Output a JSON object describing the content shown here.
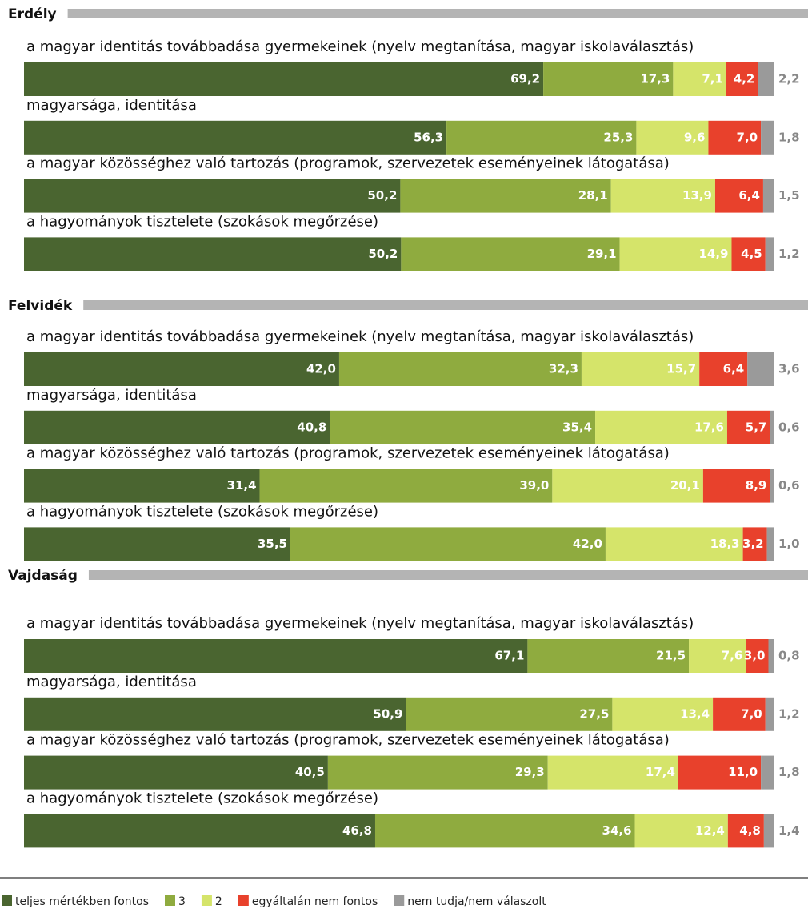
{
  "chart_data": {
    "type": "stacked-bar",
    "series": [
      {
        "name": "teljes mértékben fontos",
        "color": "#4a6530"
      },
      {
        "name": "3",
        "color": "#8fab3f"
      },
      {
        "name": "2",
        "color": "#d5e46a"
      },
      {
        "name": "egyáltalán nem fontos",
        "color": "#e8412c"
      },
      {
        "name": "nem tudja/nem válaszolt",
        "color": "#9a9a9a"
      }
    ],
    "groups": [
      {
        "title": "Erdély",
        "rows": [
          {
            "label": "a magyar identitás továbbadása gyermekeinek (nyelv megtanítása, magyar iskolaválasztás)",
            "values": [
              69.2,
              17.3,
              7.1,
              4.2,
              2.2
            ],
            "value_labels": [
              "69,2",
              "17,3",
              "7,1",
              "4,2",
              "2,2"
            ]
          },
          {
            "label": "magyarsága, identitása",
            "values": [
              56.3,
              25.3,
              9.6,
              7.0,
              1.8
            ],
            "value_labels": [
              "56,3",
              "25,3",
              "9,6",
              "7,0",
              "1,8"
            ]
          },
          {
            "label": "a magyar közösséghez való tartozás (programok, szervezetek eseményeinek látogatása)",
            "values": [
              50.2,
              28.1,
              13.9,
              6.4,
              1.5
            ],
            "value_labels": [
              "50,2",
              "28,1",
              "13,9",
              "6,4",
              "1,5"
            ]
          },
          {
            "label": "a hagyományok tisztelete (szokások megőrzése)",
            "values": [
              50.2,
              29.1,
              14.9,
              4.5,
              1.2
            ],
            "value_labels": [
              "50,2",
              "29,1",
              "14,9",
              "4,5",
              "1,2"
            ]
          }
        ]
      },
      {
        "title": "Felvidék",
        "rows": [
          {
            "label": "a magyar identitás továbbadása gyermekeinek (nyelv megtanítása, magyar iskolaválasztás)",
            "values": [
              42.0,
              32.3,
              15.7,
              6.4,
              3.6
            ],
            "value_labels": [
              "42,0",
              "32,3",
              "15,7",
              "6,4",
              "3,6"
            ]
          },
          {
            "label": "magyarsága, identitása",
            "values": [
              40.8,
              35.4,
              17.6,
              5.7,
              0.6
            ],
            "value_labels": [
              "40,8",
              "35,4",
              "17,6",
              "5,7",
              "0,6"
            ]
          },
          {
            "label": "a magyar közösséghez való tartozás (programok, szervezetek eseményeinek látogatása)",
            "values": [
              31.4,
              39.0,
              20.1,
              8.9,
              0.6
            ],
            "value_labels": [
              "31,4",
              "39,0",
              "20,1",
              "8,9",
              "0,6"
            ]
          },
          {
            "label": "a hagyományok tisztelete (szokások megőrzése)",
            "values": [
              35.5,
              42.0,
              18.3,
              3.2,
              1.0
            ],
            "value_labels": [
              "35,5",
              "42,0",
              "18,3",
              "3,2",
              "1,0"
            ]
          }
        ]
      },
      {
        "title": "Vajdaság",
        "rows": [
          {
            "label": "a magyar identitás továbbadása gyermekeinek (nyelv megtanítása, magyar iskolaválasztás)",
            "values": [
              67.1,
              21.5,
              7.6,
              3.0,
              0.8
            ],
            "value_labels": [
              "67,1",
              "21,5",
              "7,6",
              "3,0",
              "0,8"
            ]
          },
          {
            "label": "magyarsága, identitása",
            "values": [
              50.9,
              27.5,
              13.4,
              7.0,
              1.2
            ],
            "value_labels": [
              "50,9",
              "27,5",
              "13,4",
              "7,0",
              "1,2"
            ]
          },
          {
            "label": "a magyar közösséghez való tartozás (programok, szervezetek eseményeinek látogatása)",
            "values": [
              40.5,
              29.3,
              17.4,
              11.0,
              1.8
            ],
            "value_labels": [
              "40,5",
              "29,3",
              "17,4",
              "11,0",
              "1,8"
            ]
          },
          {
            "label": "a hagyományok tisztelete (szokások megőrzése)",
            "values": [
              46.8,
              34.6,
              12.4,
              4.8,
              1.4
            ],
            "value_labels": [
              "46,8",
              "34,6",
              "12,4",
              "4,8",
              "1,4"
            ]
          }
        ]
      }
    ]
  }
}
